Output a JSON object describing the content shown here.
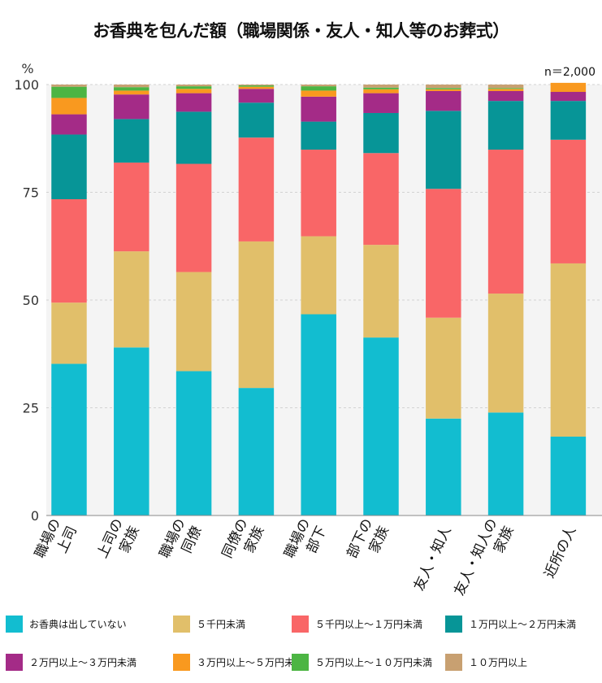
{
  "chart_data": {
    "type": "bar",
    "stacked": true,
    "title": "お香典を包んだ額（職場関係・友人・知人等のお葬式）",
    "unit_label": "%",
    "sample_note": "n＝2,000",
    "ylim": [
      0,
      100
    ],
    "yticks": [
      0,
      25,
      50,
      75,
      100
    ],
    "grid": true,
    "legend_position": "bottom",
    "categories": [
      [
        "職場の",
        "上司"
      ],
      [
        "上司の",
        "家族"
      ],
      [
        "職場の",
        "同僚"
      ],
      [
        "同僚の",
        "家族"
      ],
      [
        "職場の",
        "部下"
      ],
      [
        "部下の",
        "家族"
      ],
      [
        "友人・知人"
      ],
      [
        "友人・知人の",
        "家族"
      ],
      [
        "近所の人"
      ]
    ],
    "series": [
      {
        "name": "お香典は出していない",
        "color": "#12BDD0",
        "values": [
          35.2,
          39.0,
          33.5,
          29.6,
          46.7,
          41.3,
          22.5,
          23.9,
          18.3
        ]
      },
      {
        "name": "５千円未満",
        "color": "#E1BF6A",
        "values": [
          14.2,
          22.3,
          23.0,
          34.0,
          18.1,
          21.5,
          23.4,
          27.6,
          40.2
        ]
      },
      {
        "name": "５千円以上～１万円未満",
        "color": "#F96667",
        "values": [
          24.0,
          20.6,
          25.1,
          24.1,
          20.1,
          21.3,
          29.9,
          33.4,
          28.7
        ]
      },
      {
        "name": "１万円以上～２万円未満",
        "color": "#079597",
        "values": [
          15.0,
          10.1,
          12.1,
          8.1,
          6.5,
          9.3,
          18.1,
          11.3,
          9.0
        ]
      },
      {
        "name": "２万円以上～３万円未満",
        "color": "#A42B87",
        "values": [
          4.7,
          5.7,
          4.3,
          3.2,
          5.8,
          4.6,
          4.6,
          2.3,
          2.1
        ]
      },
      {
        "name": "３万円以上～５万円未満",
        "color": "#F9991F",
        "values": [
          3.8,
          0.9,
          1.0,
          0.5,
          1.4,
          0.9,
          0.4,
          0.5,
          2.1
        ]
      },
      {
        "name": "５万円以上～１０万円未満",
        "color": "#4CB543",
        "values": [
          2.6,
          0.8,
          0.6,
          0.3,
          1.0,
          0.4,
          0.3,
          0.2,
          0.0
        ]
      },
      {
        "name": "１０万円以上",
        "color": "#C8A071",
        "values": [
          0.5,
          0.6,
          0.4,
          0.2,
          0.4,
          0.7,
          0.8,
          0.8,
          0.0
        ]
      }
    ]
  }
}
